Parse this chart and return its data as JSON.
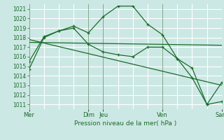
{
  "xlabel": "Pression niveau de la mer( hPa )",
  "bg_color": "#cce8e4",
  "grid_color": "#ffffff",
  "line_color": "#1a6b2a",
  "vline_color": "#2d6b3a",
  "ylim": [
    1010.5,
    1021.5
  ],
  "yticks": [
    1011,
    1012,
    1013,
    1014,
    1015,
    1016,
    1017,
    1018,
    1019,
    1020,
    1021
  ],
  "xlim": [
    0,
    13
  ],
  "day_positions": [
    0,
    4,
    5,
    9,
    13
  ],
  "day_labels": [
    "Mer",
    "Dim",
    "Jeu",
    "Ven",
    "Sam"
  ],
  "series1_x": [
    0,
    1,
    2,
    3,
    4,
    5,
    6,
    7,
    8,
    9,
    10,
    11,
    12,
    13
  ],
  "series1_y": [
    1014.7,
    1018.0,
    1018.7,
    1019.2,
    1018.5,
    1020.2,
    1021.3,
    1021.3,
    1019.4,
    1018.3,
    1015.8,
    1013.8,
    1011.0,
    1013.3
  ],
  "series2_x": [
    0,
    1,
    2,
    3,
    4,
    5,
    6,
    7,
    8,
    9,
    10,
    11,
    12,
    13
  ],
  "series2_y": [
    1015.5,
    1018.1,
    1018.7,
    1019.0,
    1017.3,
    1016.5,
    1016.2,
    1016.0,
    1017.0,
    1017.0,
    1015.8,
    1014.8,
    1011.0,
    1011.3
  ],
  "series3_x": [
    0,
    13
  ],
  "series3_y": [
    1017.5,
    1017.2
  ],
  "series4_x": [
    0,
    13
  ],
  "series4_y": [
    1017.8,
    1013.0
  ]
}
